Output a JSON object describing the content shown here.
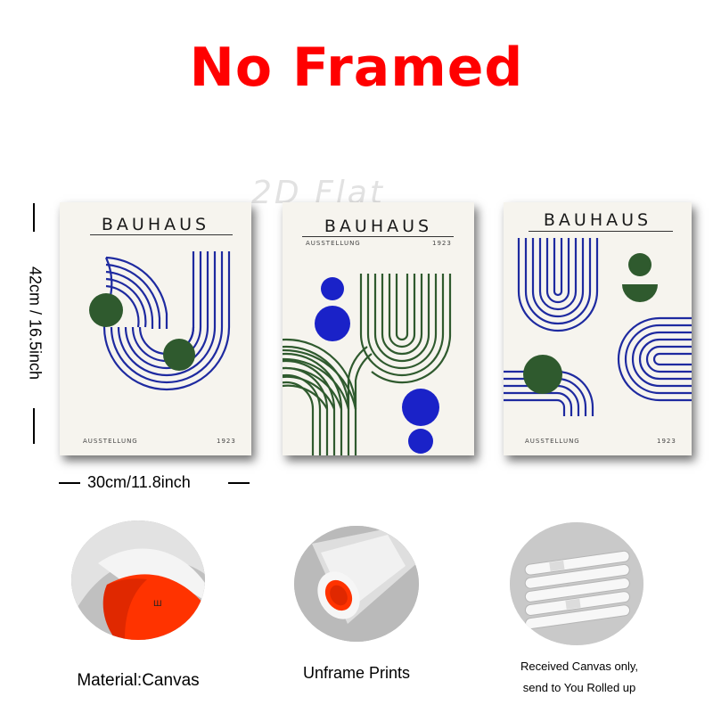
{
  "headline": "No Framed",
  "watermark": "2D Flat",
  "dimensions": {
    "height": "42cm / 16.5inch",
    "width": "30cm/11.8inch"
  },
  "posters": [
    {
      "title": "BAUHAUS",
      "subtitle": "AUSSTELLUNG",
      "year": "1923"
    },
    {
      "title": "BAUHAUS",
      "subtitle": "AUSSTELLUNG",
      "year": "1923"
    },
    {
      "title": "BAUHAUS",
      "subtitle": "AUSSTELLUNG",
      "year": "1923"
    }
  ],
  "features": [
    {
      "caption": "Material:Canvas"
    },
    {
      "caption": "Unframe  Prints"
    },
    {
      "caption_line1": "Received Canvas only,",
      "caption_line2": "send to You Rolled up"
    }
  ],
  "colors": {
    "headline": "#ff0000",
    "navy": "#1e2aa0",
    "green": "#2f5a2e",
    "royal_blue": "#1a22c8",
    "canvas_red": "#ff3300",
    "poster_bg": "#f6f4ee"
  }
}
